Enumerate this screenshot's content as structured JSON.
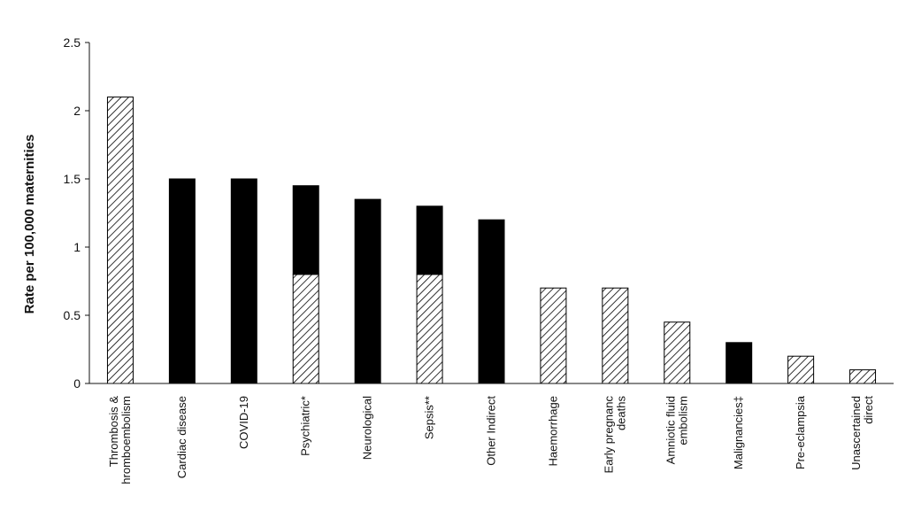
{
  "chart_data": {
    "type": "bar",
    "stacked": true,
    "title": "",
    "xlabel": "",
    "ylabel": "Rate per 100,000 maternities",
    "ylim": [
      0,
      2.5
    ],
    "yticks": [
      "0",
      "0.5",
      "1",
      "1.5",
      "2",
      "2.5"
    ],
    "grid": false,
    "categories": [
      [
        "Thrombosis &",
        "hromboembolism"
      ],
      [
        "Cardiac disease"
      ],
      [
        "COVID-19"
      ],
      [
        "Psychiatric*"
      ],
      [
        "Neurological"
      ],
      [
        "Sepsis**"
      ],
      [
        "Other Indirect"
      ],
      [
        "Haemorrhage"
      ],
      [
        "Early pregnanc",
        "deaths"
      ],
      [
        "Amniotic fluid",
        "embolism"
      ],
      [
        "Malignancies‡"
      ],
      [
        "Pre-eclampsia"
      ],
      [
        "Unascertained",
        "direct"
      ]
    ],
    "series": [
      {
        "pattern": "hatched",
        "values": [
          2.1,
          0,
          0,
          0.8,
          0,
          0.8,
          0,
          0.7,
          0.7,
          0.45,
          0,
          0.2,
          0.1
        ]
      },
      {
        "pattern": "solid",
        "values": [
          0,
          1.5,
          1.5,
          0.65,
          1.35,
          0.5,
          1.2,
          0,
          0,
          0,
          0.3,
          0,
          0
        ]
      }
    ],
    "colors": {
      "solid": "#000000",
      "hatch_stroke": "#000000",
      "hatch_bg": "#ffffff"
    }
  }
}
